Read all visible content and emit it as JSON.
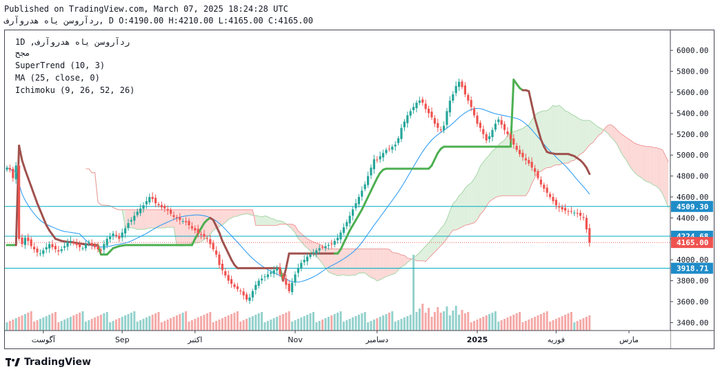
{
  "header": {
    "published": "Published on TradingView.com, March 07, 2025 18:24:28 UTC",
    "symbol_name": "ﺭﺩﺁﺭﻭﺳﻦ ﯾﺎﻩ ﻫﺪﺭﻭﺁﺭﻑ",
    "ohlc": ", D O:4190.00 H:4210.00 L:4165.00 C:4165.00"
  },
  "legend": {
    "line1": "1D ,ﺭﺩﺁﺭﻭﺳﻦ ﯾﺎﻩ ﻫﺪﺭﻭﺁﺭﻑ",
    "line2": "ﻣﺠﺢ",
    "supertrend": "SuperTrend (10, 3)",
    "ma": "MA (25, close, 0)",
    "ichimoku": "Ichimoku (9, 26, 52, 26)"
  },
  "footer": {
    "brand": "TradingView"
  },
  "colors": {
    "up": "#26a69a",
    "down": "#ef5350",
    "supertrend_up": "#4caf50",
    "supertrend_down": "#a0524e",
    "ma": "#2196f3",
    "hline": "#00acc1",
    "cloud_red": "#fcd9d7",
    "cloud_green": "#dff0de"
  },
  "chart_data": {
    "type": "candlestick",
    "interval": "1D",
    "ylim": [
      3350,
      6100
    ],
    "y_ticks": [
      "6000.00",
      "5800.00",
      "5600.00",
      "5400.00",
      "5200.00",
      "5000.00",
      "4800.00",
      "4600.00",
      "4400.00",
      "4200.00",
      "4000.00",
      "3800.00",
      "3600.00",
      "3400.00"
    ],
    "x_labels": [
      "ﺁﮔﻮﺳﺖ",
      "Sep",
      "ﺍﮐﺘﺒﺮ",
      "Nov",
      "ﺩﺳﺎﻣﺒﺮ",
      "2025",
      "ﻓﻮﺭﯾﻪ",
      "ﻣﺎﺭﺱ"
    ],
    "x_label_index": [
      12,
      38,
      62,
      95,
      122,
      155,
      181,
      205
    ],
    "price_labels": [
      {
        "value": 4509.3,
        "label": "4509.30",
        "kind": "level"
      },
      {
        "value": 4224.68,
        "label": "4224.68",
        "kind": "level"
      },
      {
        "value": 4165.0,
        "label": "4165.00",
        "kind": "last"
      },
      {
        "value": 3918.71,
        "label": "3918.71",
        "kind": "level"
      }
    ],
    "closes": [
      4880,
      4860,
      4780,
      4900,
      4200,
      4150,
      4210,
      4180,
      4130,
      4100,
      4070,
      4060,
      4090,
      4120,
      4150,
      4120,
      4100,
      4080,
      4100,
      4130,
      4170,
      4180,
      4160,
      4140,
      4120,
      4110,
      4150,
      4170,
      4140,
      4120,
      4100,
      4090,
      4150,
      4200,
      4220,
      4250,
      4230,
      4200,
      4260,
      4300,
      4350,
      4380,
      4420,
      4460,
      4490,
      4520,
      4560,
      4600,
      4580,
      4540,
      4520,
      4500,
      4490,
      4470,
      4440,
      4410,
      4400,
      4380,
      4370,
      4360,
      4330,
      4300,
      4280,
      4250,
      4240,
      4220,
      4200,
      4150,
      4100,
      4050,
      3950,
      3900,
      3850,
      3800,
      3770,
      3740,
      3720,
      3700,
      3660,
      3620,
      3640,
      3700,
      3760,
      3800,
      3820,
      3840,
      3860,
      3880,
      3900,
      3920,
      3860,
      3820,
      3760,
      3700,
      3780,
      3860,
      3920,
      3970,
      4000,
      4030,
      4050,
      4070,
      4090,
      4110,
      4120,
      4130,
      4140,
      4150,
      4180,
      4210,
      4260,
      4310,
      4360,
      4420,
      4480,
      4540,
      4600,
      4660,
      4720,
      4800,
      4880,
      4960,
      4950,
      4990,
      5020,
      5050,
      5060,
      5080,
      5100,
      5160,
      5260,
      5320,
      5380,
      5420,
      5460,
      5500,
      5520,
      5500,
      5440,
      5400,
      5360,
      5300,
      5260,
      5240,
      5280,
      5420,
      5520,
      5580,
      5660,
      5700,
      5650,
      5580,
      5520,
      5460,
      5380,
      5300,
      5260,
      5200,
      5140,
      5180,
      5240,
      5300,
      5340,
      5290,
      5240,
      5200,
      5150,
      5100,
      5050,
      5010,
      4980,
      4950,
      4920,
      4880,
      4840,
      4780,
      4720,
      4680,
      4640,
      4600,
      4560,
      4520,
      4500,
      4480,
      4470,
      4460,
      4460,
      4450,
      4440,
      4420,
      4400,
      4290,
      4165
    ],
    "supertrend": [
      4140,
      4140,
      4140,
      4140,
      5090,
      4950,
      4860,
      4780,
      4700,
      4620,
      4540,
      4470,
      4400,
      4330,
      4280,
      4240,
      4200,
      4190,
      4180,
      4175,
      4170,
      4170,
      4165,
      4160,
      4155,
      4150,
      4148,
      4146,
      4144,
      4142,
      4140,
      4050,
      4050,
      4050,
      4080,
      4110,
      4120,
      4130,
      4135,
      4140,
      4140,
      4140,
      4140,
      4140,
      4140,
      4140,
      4140,
      4140,
      4140,
      4140,
      4140,
      4140,
      4140,
      4140,
      4140,
      4140,
      4140,
      4140,
      4140,
      4140,
      4140,
      4140,
      4200,
      4250,
      4300,
      4350,
      4380,
      4400,
      4380,
      4320,
      4260,
      4180,
      4120,
      4060,
      4000,
      3950,
      3920,
      3920,
      3920,
      3920,
      3920,
      3920,
      3920,
      3920,
      3920,
      3920,
      3920,
      3920,
      3920,
      3920,
      3920,
      3800,
      3920,
      4060,
      4060,
      4060,
      4060,
      4060,
      4060,
      4060,
      4060,
      4060,
      4060,
      4060,
      4060,
      4060,
      4060,
      4060,
      4060,
      4060,
      4100,
      4160,
      4220,
      4280,
      4330,
      4380,
      4430,
      4480,
      4540,
      4600,
      4660,
      4720,
      4780,
      4830,
      4860,
      4870,
      4870,
      4870,
      4870,
      4870,
      4870,
      4870,
      4870,
      4870,
      4870,
      4870,
      4870,
      4870,
      4870,
      4870,
      4900,
      4960,
      5020,
      5060,
      5080,
      5080,
      5080,
      5080,
      5080,
      5080,
      5080,
      5080,
      5080,
      5080,
      5080,
      5080,
      5080,
      5080,
      5080,
      5080,
      5080,
      5080,
      5080,
      5080,
      5080,
      5080,
      5080,
      5720,
      5680,
      5640,
      5620,
      5620,
      5610,
      5480,
      5350,
      5250,
      5150,
      5080,
      5030,
      5020,
      5015,
      5010,
      5010,
      5010,
      5010,
      5010,
      5000,
      4990,
      4970,
      4950,
      4920,
      4880,
      4820,
      4740,
      4640
    ],
    "st_dir": [
      -1,
      -1,
      -1,
      -1,
      1,
      1,
      1,
      1,
      1,
      1,
      1,
      1,
      1,
      1,
      1,
      1,
      1,
      1,
      1,
      1,
      1,
      1,
      1,
      1,
      1,
      1,
      1,
      1,
      1,
      1,
      1,
      -1,
      -1,
      -1,
      -1,
      -1,
      -1,
      -1,
      -1,
      -1,
      -1,
      -1,
      -1,
      -1,
      -1,
      -1,
      -1,
      -1,
      -1,
      -1,
      -1,
      -1,
      -1,
      -1,
      -1,
      -1,
      -1,
      -1,
      -1,
      -1,
      -1,
      -1,
      -1,
      -1,
      -1,
      -1,
      -1,
      -1,
      1,
      1,
      1,
      1,
      1,
      1,
      1,
      1,
      1,
      1,
      1,
      1,
      1,
      1,
      1,
      1,
      1,
      1,
      1,
      1,
      1,
      1,
      1,
      -1,
      1,
      1,
      1,
      1,
      1,
      1,
      1,
      1,
      1,
      1,
      1,
      1,
      1,
      1,
      1,
      1,
      1,
      -1,
      -1,
      -1,
      -1,
      -1,
      -1,
      -1,
      -1,
      -1,
      -1,
      -1,
      -1,
      -1,
      -1,
      -1,
      -1,
      -1,
      -1,
      -1,
      -1,
      -1,
      -1,
      -1,
      -1,
      -1,
      -1,
      -1,
      -1,
      -1,
      -1,
      -1,
      -1,
      -1,
      -1,
      -1,
      -1,
      -1,
      -1,
      -1,
      -1,
      -1,
      -1,
      -1,
      -1,
      -1,
      -1,
      -1,
      -1,
      -1,
      -1,
      -1,
      -1,
      -1,
      -1,
      -1,
      -1,
      -1,
      -1,
      -1,
      -1,
      -1,
      -1,
      1,
      1,
      1,
      1,
      1,
      1,
      1,
      1,
      1,
      1,
      1,
      1,
      1,
      1,
      1,
      1,
      1,
      1,
      1,
      1,
      1,
      1,
      1,
      1,
      1,
      1,
      1,
      1,
      1,
      1
    ]
  }
}
